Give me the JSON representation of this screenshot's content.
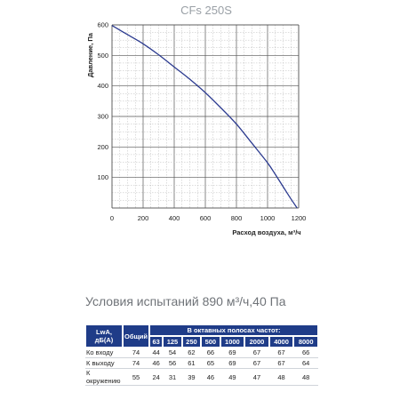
{
  "chart_data": {
    "type": "line",
    "title": "CFs 250S",
    "xlabel": "Расход воздуха, м³/ч",
    "ylabel": "Давление, Па",
    "xlim": [
      0,
      1200
    ],
    "ylim": [
      0,
      600
    ],
    "x_ticks": [
      "0",
      "200",
      "400",
      "600",
      "800",
      "1000",
      "1200"
    ],
    "y_ticks": [
      "100",
      "200",
      "300",
      "400",
      "500",
      "600"
    ],
    "grid": true,
    "series": [
      {
        "color": "#2b3a8f",
        "x": [
          0,
          100,
          200,
          300,
          400,
          500,
          600,
          700,
          800,
          900,
          1000,
          1050,
          1100,
          1150,
          1190
        ],
        "y": [
          598,
          568,
          538,
          502,
          462,
          422,
          378,
          328,
          275,
          212,
          148,
          110,
          70,
          30,
          0
        ]
      }
    ]
  },
  "conditions": "Условия испытаний 890 м³/ч,40 Па",
  "table": {
    "col_lwa": "LwA, дБ(А)",
    "col_total": "Общий",
    "col_bands": "В октавных полосах частот:",
    "freqs": [
      "63",
      "125",
      "250",
      "500",
      "1000",
      "2000",
      "4000",
      "8000"
    ],
    "rows": [
      {
        "label": "Ко входу",
        "total": "74",
        "values": [
          "44",
          "54",
          "62",
          "66",
          "69",
          "67",
          "67",
          "66"
        ]
      },
      {
        "label": "К выходу",
        "total": "74",
        "values": [
          "46",
          "56",
          "61",
          "65",
          "69",
          "67",
          "67",
          "64"
        ]
      },
      {
        "label": "К окружению",
        "total": "55",
        "values": [
          "24",
          "31",
          "39",
          "46",
          "49",
          "47",
          "48",
          "48"
        ]
      }
    ]
  }
}
